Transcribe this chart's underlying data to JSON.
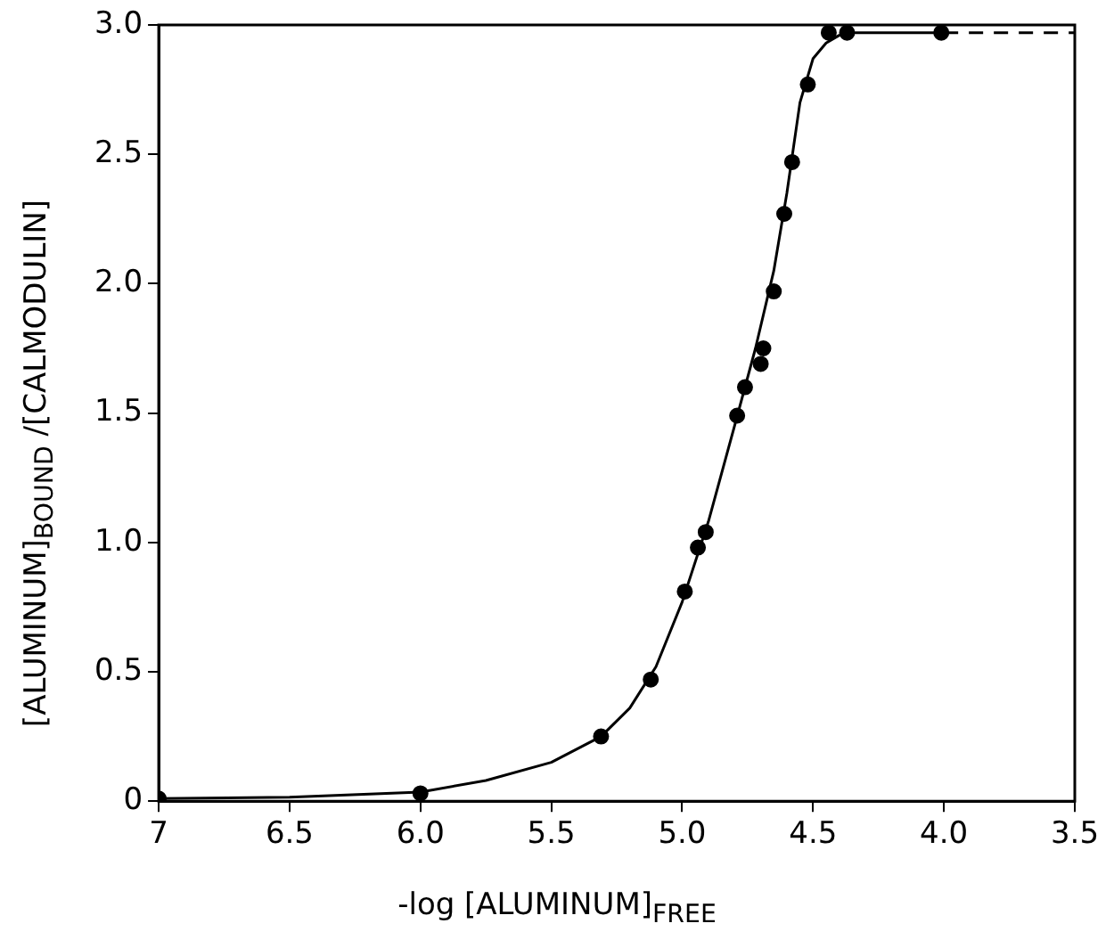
{
  "chart_data": {
    "type": "scatter",
    "xlabel": "-log [ALUMINUM]$_{FREE}$",
    "ylabel": "[ALUMINUM]$_{BOUND}$ /[CALMODULIN]",
    "xlim": [
      7,
      3.5
    ],
    "ylim": [
      0,
      3
    ],
    "xticks": [
      7,
      6.5,
      {
        "value": 6,
        "label": "6.0"
      },
      5.5,
      {
        "value": 5,
        "label": "5.0"
      },
      4.5,
      {
        "value": 4,
        "label": "4.0"
      },
      3.5
    ],
    "yticks": [
      0,
      0.5,
      {
        "value": 1,
        "label": "1.0"
      },
      1.5,
      {
        "value": 2,
        "label": "2.0"
      },
      2.5,
      {
        "value": 3,
        "label": "3.0"
      }
    ],
    "grid": false,
    "legend": false,
    "series": [
      {
        "color": "#000000",
        "marker": "circle",
        "x": [
          7.0,
          6.0,
          5.31,
          5.12,
          4.99,
          4.94,
          4.91,
          4.79,
          4.76,
          4.7,
          4.69,
          4.65,
          4.61,
          4.58,
          4.52,
          4.44,
          4.37,
          4.01
        ],
        "values": [
          0.01,
          0.03,
          0.25,
          0.47,
          0.81,
          0.98,
          1.04,
          1.49,
          1.6,
          1.69,
          1.75,
          1.97,
          2.27,
          2.47,
          2.77,
          2.97,
          2.97,
          2.97
        ]
      },
      {
        "type": "line",
        "color": "#000000",
        "marker": "none",
        "line_style": "solid",
        "x": [
          7.0,
          6.5,
          6.0,
          5.75,
          5.5,
          5.31,
          5.2,
          5.1,
          5.0,
          4.9,
          4.8,
          4.72,
          4.65,
          4.6,
          4.55,
          4.5,
          4.45,
          4.4,
          4.35,
          4.0
        ],
        "values": [
          0.01,
          0.015,
          0.035,
          0.08,
          0.15,
          0.25,
          0.36,
          0.52,
          0.77,
          1.08,
          1.45,
          1.75,
          2.05,
          2.35,
          2.7,
          2.87,
          2.93,
          2.96,
          2.97,
          2.97
        ]
      },
      {
        "type": "line",
        "color": "#000000",
        "marker": "none",
        "line_style": "dashed",
        "x": [
          4.0,
          3.5
        ],
        "values": [
          2.97,
          2.97
        ]
      }
    ]
  }
}
